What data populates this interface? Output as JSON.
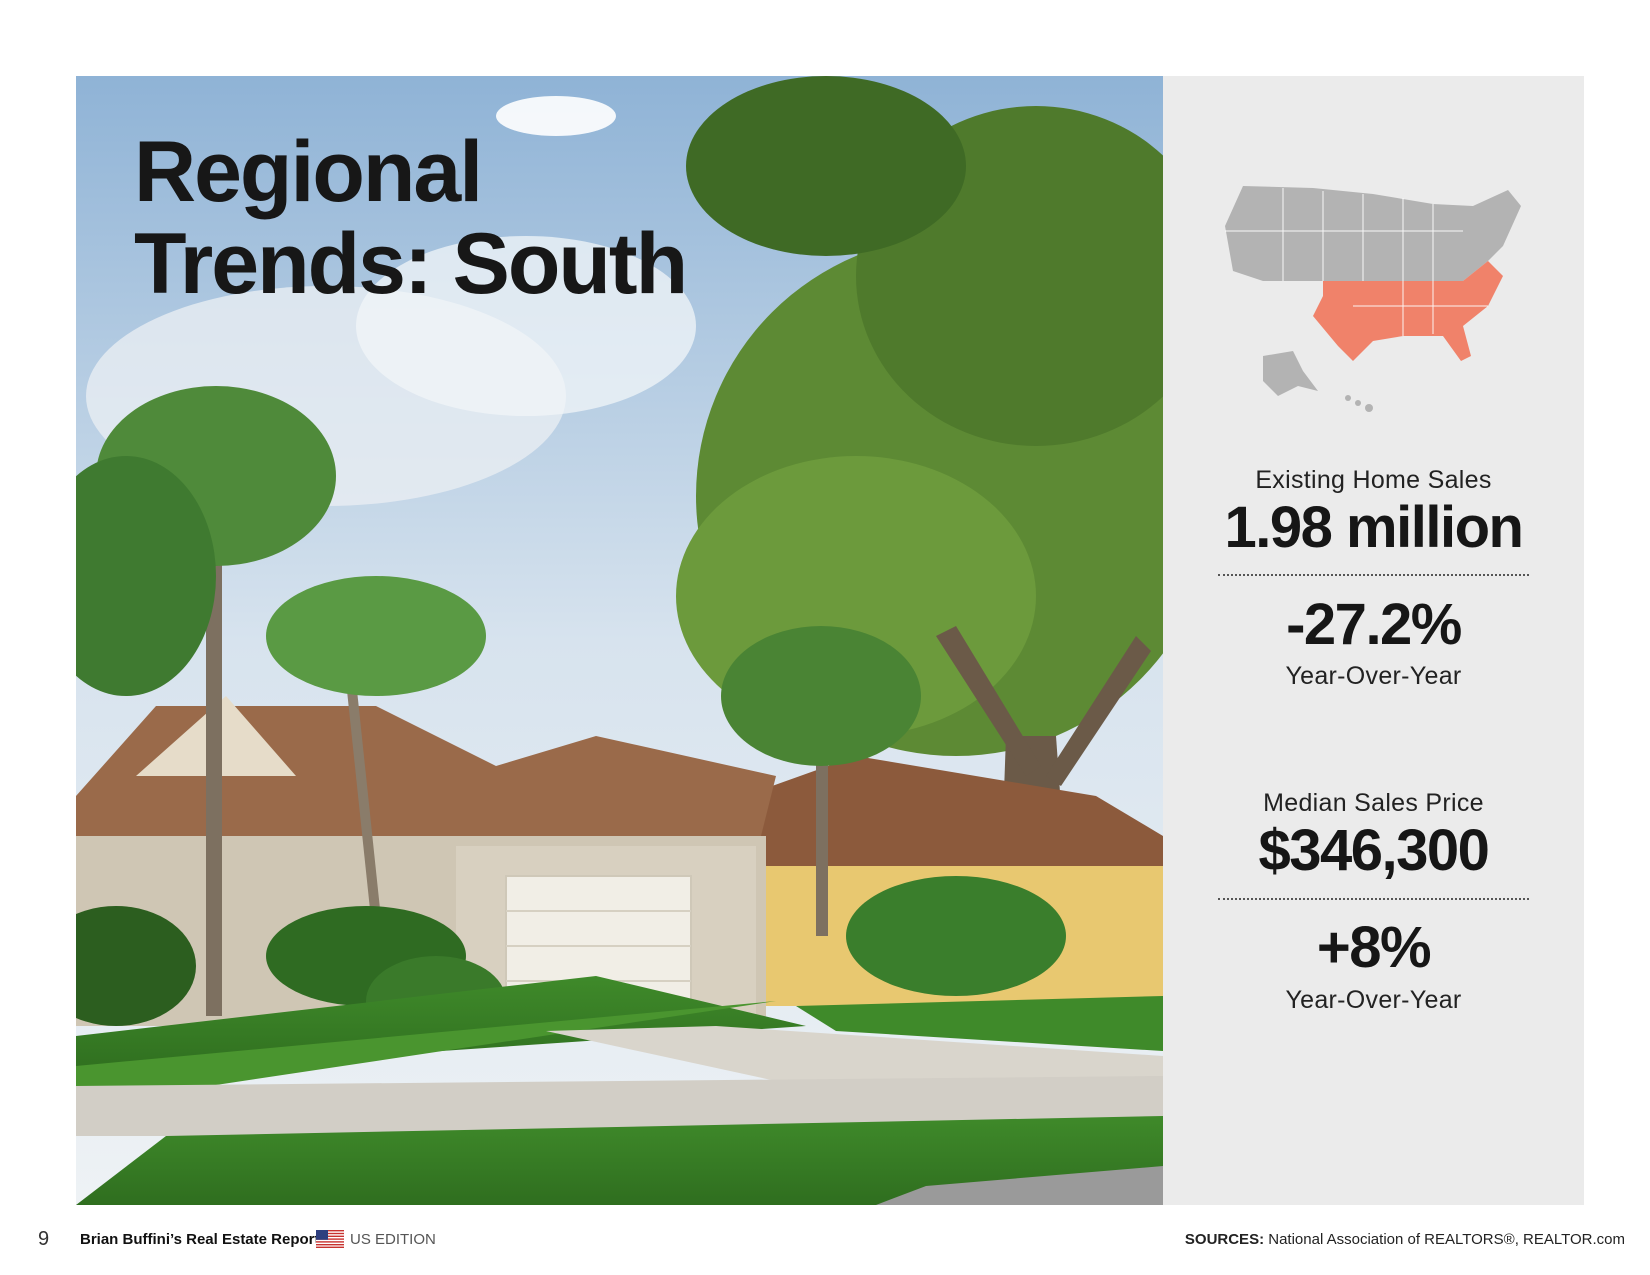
{
  "title": {
    "line1": "Regional",
    "line2": "Trends: South"
  },
  "stats": {
    "existing_sales_label": "Existing Home Sales",
    "existing_sales_value": "1.98 million",
    "existing_sales_change": "-27.2%",
    "existing_sales_change_label": "Year-Over-Year",
    "median_price_label": "Median Sales Price",
    "median_price_value": "$346,300",
    "median_price_change": "+8%",
    "median_price_change_label": "Year-Over-Year"
  },
  "map": {
    "base_color": "#b3b3b3",
    "highlight_color": "#f0826a"
  },
  "footer": {
    "page_number": "9",
    "report_title": "Brian Buffini’s Real Estate Report",
    "edition": "US EDITION",
    "sources_label": "SOURCES:",
    "sources_text": "National Association of REALTORS®, REALTOR.com"
  }
}
